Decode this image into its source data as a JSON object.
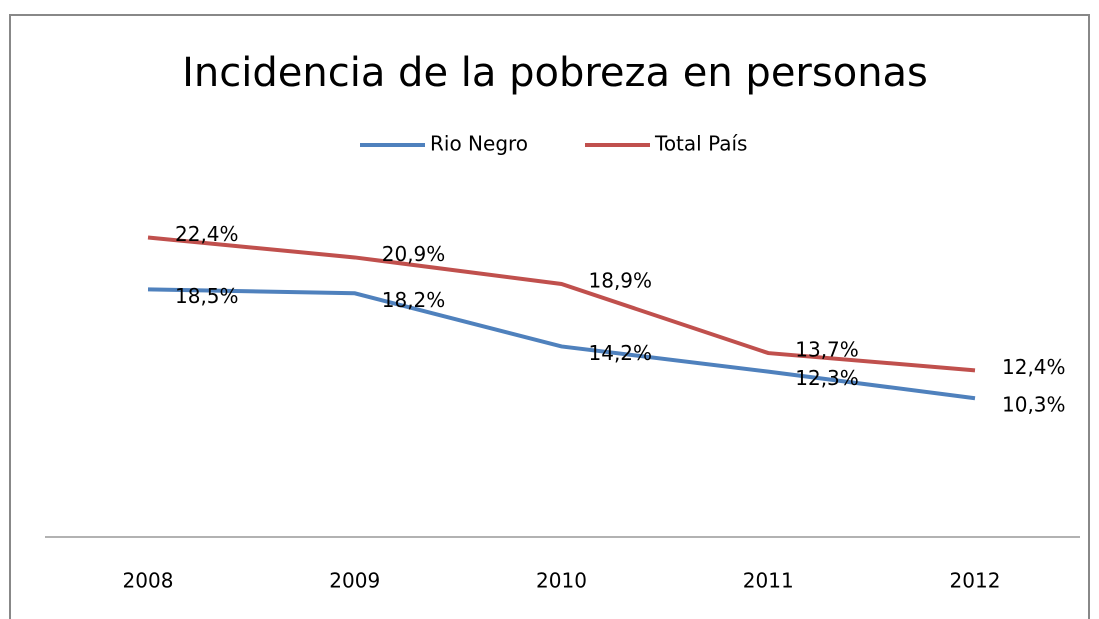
{
  "chart_data": {
    "type": "line",
    "title": "Incidencia de la pobreza en personas",
    "categories": [
      "2008",
      "2009",
      "2010",
      "2011",
      "2012"
    ],
    "series": [
      {
        "name": "Rio Negro",
        "color": "#4f81bd",
        "values": [
          18.5,
          18.2,
          14.2,
          12.3,
          10.3
        ],
        "value_labels": [
          "18,5%",
          "18,2%",
          "14,2%",
          "12,3%",
          "10,3%"
        ]
      },
      {
        "name": "Total País",
        "color": "#c0504d",
        "values": [
          22.4,
          20.9,
          18.9,
          13.7,
          12.4
        ],
        "value_labels": [
          "22,4%",
          "20,9%",
          "18,9%",
          "13,7%",
          "12,4%"
        ]
      }
    ],
    "ylim": [
      0,
      25
    ],
    "legend": "top"
  }
}
